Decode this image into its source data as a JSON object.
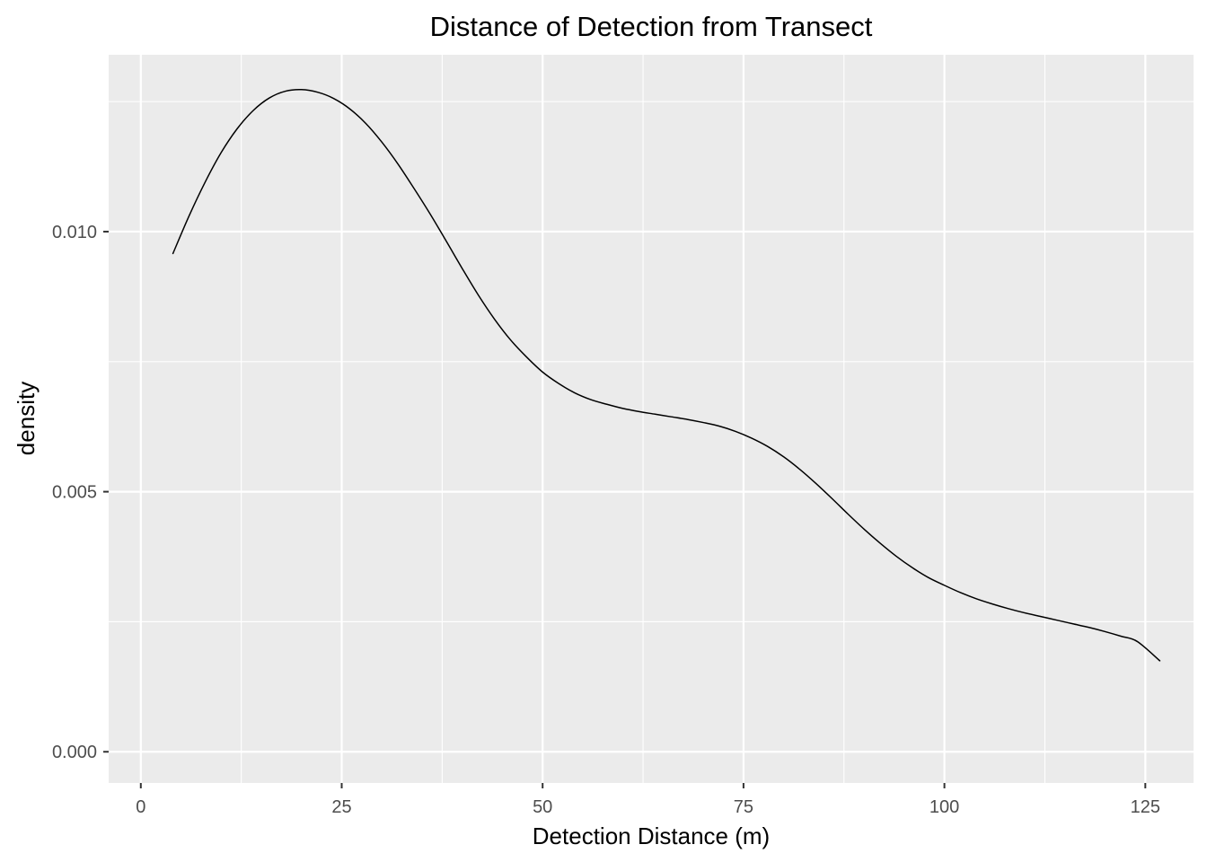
{
  "chart_data": {
    "type": "line",
    "title": "Distance of Detection from Transect",
    "xlabel": "Detection Distance (m)",
    "ylabel": "density",
    "xlim": [
      -4,
      131
    ],
    "ylim": [
      -0.0006,
      0.0134
    ],
    "x_ticks": [
      0,
      25,
      50,
      75,
      100,
      125
    ],
    "x_tick_labels": [
      "0",
      "25",
      "50",
      "75",
      "100",
      "125"
    ],
    "x_minor_ticks": [
      12.5,
      37.5,
      62.5,
      87.5,
      112.5
    ],
    "y_ticks": [
      0,
      0.005,
      0.01
    ],
    "y_tick_labels": [
      "0.000",
      "0.005",
      "0.010"
    ],
    "y_minor_ticks": [
      0.0025,
      0.0075,
      0.0125
    ],
    "grid": true,
    "background": "#ebebeb",
    "grid_color": "#ffffff",
    "line_color": "#000000",
    "series": [
      {
        "x": [
          4,
          6,
          8,
          10,
          12,
          14,
          16,
          18,
          20,
          22,
          24,
          26,
          28,
          30,
          32,
          34,
          36,
          38,
          40,
          42,
          44,
          46,
          48,
          50,
          52,
          54,
          56,
          58,
          60,
          62,
          64,
          66,
          68,
          70,
          72,
          74,
          76,
          78,
          80,
          82,
          84,
          86,
          88,
          90,
          92,
          94,
          96,
          98,
          100,
          102,
          104,
          106,
          108,
          110,
          112,
          114,
          116,
          118,
          120,
          122,
          124,
          126.8
        ],
        "y": [
          0.00958,
          0.0103,
          0.01095,
          0.01152,
          0.01198,
          0.01233,
          0.01257,
          0.0127,
          0.01273,
          0.01268,
          0.01256,
          0.01236,
          0.01208,
          0.01172,
          0.0113,
          0.01083,
          0.01034,
          0.00982,
          0.00929,
          0.00878,
          0.00832,
          0.00792,
          0.00759,
          0.0073,
          0.00708,
          0.0069,
          0.00677,
          0.00668,
          0.0066,
          0.00654,
          0.00649,
          0.00644,
          0.00639,
          0.00633,
          0.00626,
          0.00616,
          0.00603,
          0.00587,
          0.00567,
          0.00543,
          0.00516,
          0.00487,
          0.00457,
          0.00428,
          0.00401,
          0.00376,
          0.00354,
          0.00335,
          0.0032,
          0.00306,
          0.00294,
          0.00284,
          0.00275,
          0.00267,
          0.0026,
          0.00253,
          0.00246,
          0.00239,
          0.00231,
          0.00222,
          0.00212,
          0.00175
        ]
      }
    ]
  }
}
